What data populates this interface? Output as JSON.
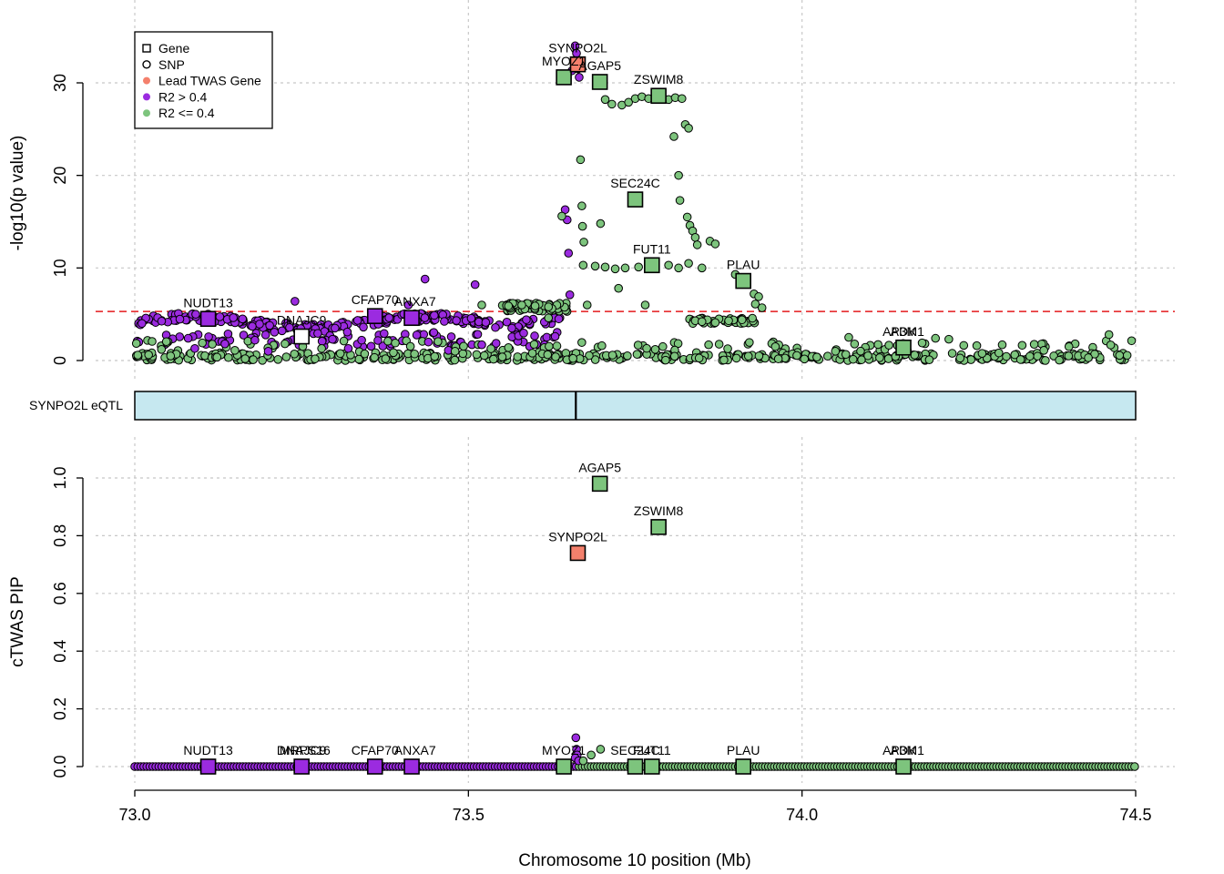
{
  "chart_data": {
    "type": "scatter",
    "xlabel": "Chromosome 10 position (Mb)",
    "xlim": [
      73.0,
      74.5
    ],
    "xticks": [
      73.0,
      73.5,
      74.0,
      74.5
    ],
    "xtick_labels": [
      "73.0",
      "73.5",
      "74.0",
      "74.5"
    ],
    "colors": {
      "lead_twas_gene": "#f4806c",
      "r2_high": "#9b2be0",
      "r2_low": "#7dc47d",
      "eqtl_track": "#c6e8f0",
      "significance_line": "#e41a1c"
    },
    "legend": {
      "position": "top-left",
      "entries": [
        {
          "label": "Gene",
          "symbol": "square-open"
        },
        {
          "label": "SNP",
          "symbol": "circle-open"
        },
        {
          "label": "Lead TWAS Gene",
          "symbol": "dot",
          "color": "#f4806c"
        },
        {
          "label": "R2 > 0.4",
          "symbol": "dot",
          "color": "#9b2be0"
        },
        {
          "label": "R2 <= 0.4",
          "symbol": "dot",
          "color": "#7dc47d"
        }
      ]
    },
    "association_panel": {
      "ylabel": "-log10(p value)",
      "ylim": [
        0,
        34
      ],
      "yticks": [
        0,
        10,
        20,
        30
      ],
      "ytick_labels": [
        "0",
        "10",
        "20",
        "30"
      ],
      "significance_threshold": 5.3,
      "genes": [
        {
          "name": "NUDT13",
          "pos": 73.11,
          "value": 4.5,
          "group": "high"
        },
        {
          "name": "DNAJC9",
          "pos": 73.25,
          "value": 2.6,
          "group": "none"
        },
        {
          "name": "CFAP70",
          "pos": 73.36,
          "value": 4.8,
          "group": "high"
        },
        {
          "name": "ANXA7",
          "pos": 73.415,
          "value": 4.6,
          "group": "high"
        },
        {
          "name": "MYOZ1",
          "pos": 73.643,
          "value": 30.6,
          "group": "low"
        },
        {
          "name": "SYNPO2L",
          "pos": 73.664,
          "value": 32.0,
          "group": "lead"
        },
        {
          "name": "AGAP5",
          "pos": 73.697,
          "value": 30.1,
          "group": "low"
        },
        {
          "name": "ZSWIM8",
          "pos": 73.785,
          "value": 28.6,
          "group": "low"
        },
        {
          "name": "SEC24C",
          "pos": 73.75,
          "value": 17.4,
          "group": "low"
        },
        {
          "name": "FUT11",
          "pos": 73.775,
          "value": 10.3,
          "group": "low"
        },
        {
          "name": "PLAU",
          "pos": 73.912,
          "value": 8.6,
          "group": "low"
        },
        {
          "name": "ADK",
          "pos": 74.152,
          "value": 1.4,
          "group": "low"
        }
      ],
      "gene_label_texts": [
        {
          "text": "NUDT13",
          "pos": 73.11,
          "value": 4.5
        },
        {
          "text": "DNAJC9",
          "pos": 73.25,
          "value": 2.6
        },
        {
          "text": "CFAP70",
          "pos": 73.36,
          "value": 4.8
        },
        {
          "text": "ANXA7",
          "pos": 73.42,
          "value": 4.6
        },
        {
          "text": "MYOZ1",
          "pos": 73.643,
          "value": 30.6
        },
        {
          "text": "SYNPO2L",
          "pos": 73.664,
          "value": 32.0
        },
        {
          "text": "AGAP5",
          "pos": 73.697,
          "value": 30.1
        },
        {
          "text": "ZSWIM8",
          "pos": 73.785,
          "value": 28.6
        },
        {
          "text": "SEC24C",
          "pos": 73.75,
          "value": 17.4
        },
        {
          "text": "FUT11",
          "pos": 73.775,
          "value": 10.3
        },
        {
          "text": "PLAU",
          "pos": 73.912,
          "value": 8.6
        },
        {
          "text": "ADK",
          "pos": 74.152,
          "value": 1.4
        },
        {
          "text": "AP3M1",
          "pos": 74.152,
          "value": 1.4
        }
      ],
      "snps": [
        {
          "pos": 73.66,
          "value": 34.0,
          "group": "high"
        },
        {
          "pos": 73.662,
          "value": 33.2,
          "group": "high"
        },
        {
          "pos": 73.664,
          "value": 31.5,
          "group": "high"
        },
        {
          "pos": 73.666,
          "value": 30.6,
          "group": "high"
        },
        {
          "pos": 73.655,
          "value": 31.3,
          "group": "high"
        },
        {
          "pos": 73.645,
          "value": 16.3,
          "group": "high"
        },
        {
          "pos": 73.648,
          "value": 15.2,
          "group": "high"
        },
        {
          "pos": 73.65,
          "value": 11.6,
          "group": "high"
        },
        {
          "pos": 73.652,
          "value": 7.1,
          "group": "high"
        },
        {
          "pos": 73.51,
          "value": 8.2,
          "group": "high"
        },
        {
          "pos": 73.435,
          "value": 8.8,
          "group": "high"
        },
        {
          "pos": 73.24,
          "value": 6.4,
          "group": "high"
        },
        {
          "pos": 73.41,
          "value": 6.0,
          "group": "high"
        },
        {
          "pos": 73.08,
          "value": 2.4,
          "group": "high"
        },
        {
          "pos": 73.09,
          "value": 1.3,
          "group": "high"
        },
        {
          "pos": 73.135,
          "value": 1.8,
          "group": "high"
        },
        {
          "pos": 73.18,
          "value": 2.2,
          "group": "high"
        },
        {
          "pos": 73.2,
          "value": 1.0,
          "group": "high"
        },
        {
          "pos": 73.3,
          "value": 3.5,
          "group": "high"
        },
        {
          "pos": 73.32,
          "value": 1.3,
          "group": "high"
        },
        {
          "pos": 73.34,
          "value": 2.2,
          "group": "high"
        },
        {
          "pos": 73.44,
          "value": 2.0,
          "group": "high"
        },
        {
          "pos": 73.47,
          "value": 1.1,
          "group": "high"
        },
        {
          "pos": 73.52,
          "value": 1.7,
          "group": "high"
        },
        {
          "pos": 73.565,
          "value": 3.5,
          "group": "high"
        },
        {
          "pos": 73.63,
          "value": 2.6,
          "group": "high"
        },
        {
          "pos": 73.64,
          "value": 15.6,
          "group": "low"
        },
        {
          "pos": 73.668,
          "value": 21.7,
          "group": "low"
        },
        {
          "pos": 73.67,
          "value": 16.7,
          "group": "low"
        },
        {
          "pos": 73.671,
          "value": 14.5,
          "group": "low"
        },
        {
          "pos": 73.673,
          "value": 12.8,
          "group": "low"
        },
        {
          "pos": 73.698,
          "value": 14.8,
          "group": "low"
        },
        {
          "pos": 73.672,
          "value": 10.3,
          "group": "low"
        },
        {
          "pos": 73.678,
          "value": 6.0,
          "group": "low"
        },
        {
          "pos": 73.705,
          "value": 28.2,
          "group": "low"
        },
        {
          "pos": 73.715,
          "value": 27.7,
          "group": "low"
        },
        {
          "pos": 73.73,
          "value": 27.6,
          "group": "low"
        },
        {
          "pos": 73.74,
          "value": 27.9,
          "group": "low"
        },
        {
          "pos": 73.75,
          "value": 28.3,
          "group": "low"
        },
        {
          "pos": 73.76,
          "value": 28.5,
          "group": "low"
        },
        {
          "pos": 73.77,
          "value": 28.3,
          "group": "low"
        },
        {
          "pos": 73.8,
          "value": 28.2,
          "group": "low"
        },
        {
          "pos": 73.81,
          "value": 28.4,
          "group": "low"
        },
        {
          "pos": 73.82,
          "value": 28.3,
          "group": "low"
        },
        {
          "pos": 73.825,
          "value": 25.5,
          "group": "low"
        },
        {
          "pos": 73.83,
          "value": 25.1,
          "group": "low"
        },
        {
          "pos": 73.808,
          "value": 24.2,
          "group": "low"
        },
        {
          "pos": 73.815,
          "value": 20.0,
          "group": "low"
        },
        {
          "pos": 73.817,
          "value": 17.3,
          "group": "low"
        },
        {
          "pos": 73.828,
          "value": 15.5,
          "group": "low"
        },
        {
          "pos": 73.832,
          "value": 14.6,
          "group": "low"
        },
        {
          "pos": 73.836,
          "value": 14.0,
          "group": "low"
        },
        {
          "pos": 73.84,
          "value": 13.3,
          "group": "low"
        },
        {
          "pos": 73.843,
          "value": 12.5,
          "group": "low"
        },
        {
          "pos": 73.862,
          "value": 12.9,
          "group": "low"
        },
        {
          "pos": 73.87,
          "value": 12.6,
          "group": "low"
        },
        {
          "pos": 73.69,
          "value": 10.2,
          "group": "low"
        },
        {
          "pos": 73.705,
          "value": 10.1,
          "group": "low"
        },
        {
          "pos": 73.72,
          "value": 9.9,
          "group": "low"
        },
        {
          "pos": 73.735,
          "value": 10.0,
          "group": "low"
        },
        {
          "pos": 73.755,
          "value": 10.1,
          "group": "low"
        },
        {
          "pos": 73.8,
          "value": 10.3,
          "group": "low"
        },
        {
          "pos": 73.815,
          "value": 10.0,
          "group": "low"
        },
        {
          "pos": 73.83,
          "value": 10.5,
          "group": "low"
        },
        {
          "pos": 73.85,
          "value": 10.0,
          "group": "low"
        },
        {
          "pos": 73.725,
          "value": 7.8,
          "group": "low"
        },
        {
          "pos": 73.765,
          "value": 6.0,
          "group": "low"
        },
        {
          "pos": 73.9,
          "value": 9.3,
          "group": "low"
        },
        {
          "pos": 73.928,
          "value": 7.2,
          "group": "low"
        },
        {
          "pos": 73.935,
          "value": 6.9,
          "group": "low"
        },
        {
          "pos": 73.93,
          "value": 6.1,
          "group": "low"
        },
        {
          "pos": 73.94,
          "value": 5.7,
          "group": "low"
        },
        {
          "pos": 73.52,
          "value": 6.0,
          "group": "low"
        },
        {
          "pos": 73.56,
          "value": 5.9,
          "group": "low"
        },
        {
          "pos": 73.58,
          "value": 6.0,
          "group": "low"
        },
        {
          "pos": 73.6,
          "value": 5.9,
          "group": "low"
        },
        {
          "pos": 73.62,
          "value": 5.8,
          "group": "low"
        },
        {
          "pos": 73.62,
          "value": 4.6,
          "group": "low"
        },
        {
          "pos": 73.84,
          "value": 4.3,
          "group": "low"
        },
        {
          "pos": 73.85,
          "value": 4.2,
          "group": "low"
        },
        {
          "pos": 73.87,
          "value": 4.1,
          "group": "low"
        },
        {
          "pos": 73.89,
          "value": 4.3,
          "group": "low"
        },
        {
          "pos": 73.91,
          "value": 4.4,
          "group": "low"
        },
        {
          "pos": 74.07,
          "value": 2.5,
          "group": "low"
        },
        {
          "pos": 74.2,
          "value": 2.4,
          "group": "low"
        },
        {
          "pos": 74.22,
          "value": 2.3,
          "group": "low"
        },
        {
          "pos": 74.46,
          "value": 2.8,
          "group": "low"
        },
        {
          "pos": 74.18,
          "value": 1.9,
          "group": "low"
        },
        {
          "pos": 74.3,
          "value": 1.7,
          "group": "low"
        },
        {
          "pos": 74.4,
          "value": 1.5,
          "group": "low"
        },
        {
          "pos": 73.04,
          "value": 1.2,
          "group": "low"
        },
        {
          "pos": 73.15,
          "value": 1.1,
          "group": "low"
        },
        {
          "pos": 73.28,
          "value": 1.3,
          "group": "low"
        },
        {
          "pos": 73.48,
          "value": 1.0,
          "group": "low"
        },
        {
          "pos": 73.56,
          "value": 1.4,
          "group": "low"
        },
        {
          "pos": 73.7,
          "value": 1.6,
          "group": "low"
        },
        {
          "pos": 73.78,
          "value": 1.2,
          "group": "low"
        },
        {
          "pos": 73.86,
          "value": 1.7,
          "group": "low"
        },
        {
          "pos": 73.96,
          "value": 1.5,
          "group": "low"
        },
        {
          "pos": 74.05,
          "value": 1.0,
          "group": "low"
        }
      ]
    },
    "eqtl_track": {
      "label": "SYNPO2L eQTL",
      "start": 73.0,
      "end": 74.5,
      "marker_pos": 73.661
    },
    "pip_panel": {
      "ylabel": "cTWAS PIP",
      "ylim": [
        0,
        1.05
      ],
      "yticks": [
        0.0,
        0.2,
        0.4,
        0.6,
        0.8,
        1.0
      ],
      "ytick_labels": [
        "0.0",
        "0.2",
        "0.4",
        "0.6",
        "0.8",
        "1.0"
      ],
      "genes": [
        {
          "name": "NUDT13",
          "pos": 73.11,
          "value": 0.0,
          "group": "high"
        },
        {
          "name": "DNAJC9",
          "pos": 73.25,
          "value": 0.0,
          "group": "high"
        },
        {
          "name": "CFAP70",
          "pos": 73.36,
          "value": 0.0,
          "group": "high"
        },
        {
          "name": "ANXA7",
          "pos": 73.415,
          "value": 0.0,
          "group": "high"
        },
        {
          "name": "MYOZ1",
          "pos": 73.643,
          "value": 0.0,
          "group": "low"
        },
        {
          "name": "SYNPO2L",
          "pos": 73.664,
          "value": 0.74,
          "group": "lead"
        },
        {
          "name": "AGAP5",
          "pos": 73.697,
          "value": 0.98,
          "group": "low"
        },
        {
          "name": "ZSWIM8",
          "pos": 73.785,
          "value": 0.83,
          "group": "low"
        },
        {
          "name": "SEC24C",
          "pos": 73.75,
          "value": 0.0,
          "group": "low"
        },
        {
          "name": "FUT11",
          "pos": 73.775,
          "value": 0.0,
          "group": "low"
        },
        {
          "name": "PLAU",
          "pos": 73.912,
          "value": 0.0,
          "group": "low"
        },
        {
          "name": "ADK",
          "pos": 74.152,
          "value": 0.0,
          "group": "low"
        }
      ],
      "gene_label_texts": [
        {
          "text": "NUDT13",
          "pos": 73.11,
          "value": 0.0
        },
        {
          "text": "DNAJC9",
          "pos": 73.25,
          "value": 0.0
        },
        {
          "text": "MRPS16",
          "pos": 73.255,
          "value": 0.0
        },
        {
          "text": "CFAP70",
          "pos": 73.36,
          "value": 0.0
        },
        {
          "text": "ANXA7",
          "pos": 73.42,
          "value": 0.0
        },
        {
          "text": "MYOZ1",
          "pos": 73.643,
          "value": 0.0
        },
        {
          "text": "SYNPO2L",
          "pos": 73.664,
          "value": 0.74
        },
        {
          "text": "AGAP5",
          "pos": 73.697,
          "value": 0.98
        },
        {
          "text": "ZSWIM8",
          "pos": 73.785,
          "value": 0.83
        },
        {
          "text": "SEC24C",
          "pos": 73.75,
          "value": 0.0
        },
        {
          "text": "FUT11",
          "pos": 73.775,
          "value": 0.0
        },
        {
          "text": "PLAU",
          "pos": 73.912,
          "value": 0.0
        },
        {
          "text": "ADK",
          "pos": 74.152,
          "value": 0.0
        },
        {
          "text": "AP3M1",
          "pos": 74.152,
          "value": 0.0
        }
      ],
      "snps": [
        {
          "pos": 73.661,
          "value": 0.1,
          "group": "high"
        },
        {
          "pos": 73.662,
          "value": 0.06,
          "group": "high"
        },
        {
          "pos": 73.663,
          "value": 0.04,
          "group": "high"
        },
        {
          "pos": 73.66,
          "value": 0.03,
          "group": "high"
        },
        {
          "pos": 73.665,
          "value": 0.02,
          "group": "high"
        },
        {
          "pos": 73.698,
          "value": 0.06,
          "group": "low"
        },
        {
          "pos": 73.684,
          "value": 0.04,
          "group": "low"
        },
        {
          "pos": 73.672,
          "value": 0.02,
          "group": "low"
        }
      ]
    }
  }
}
